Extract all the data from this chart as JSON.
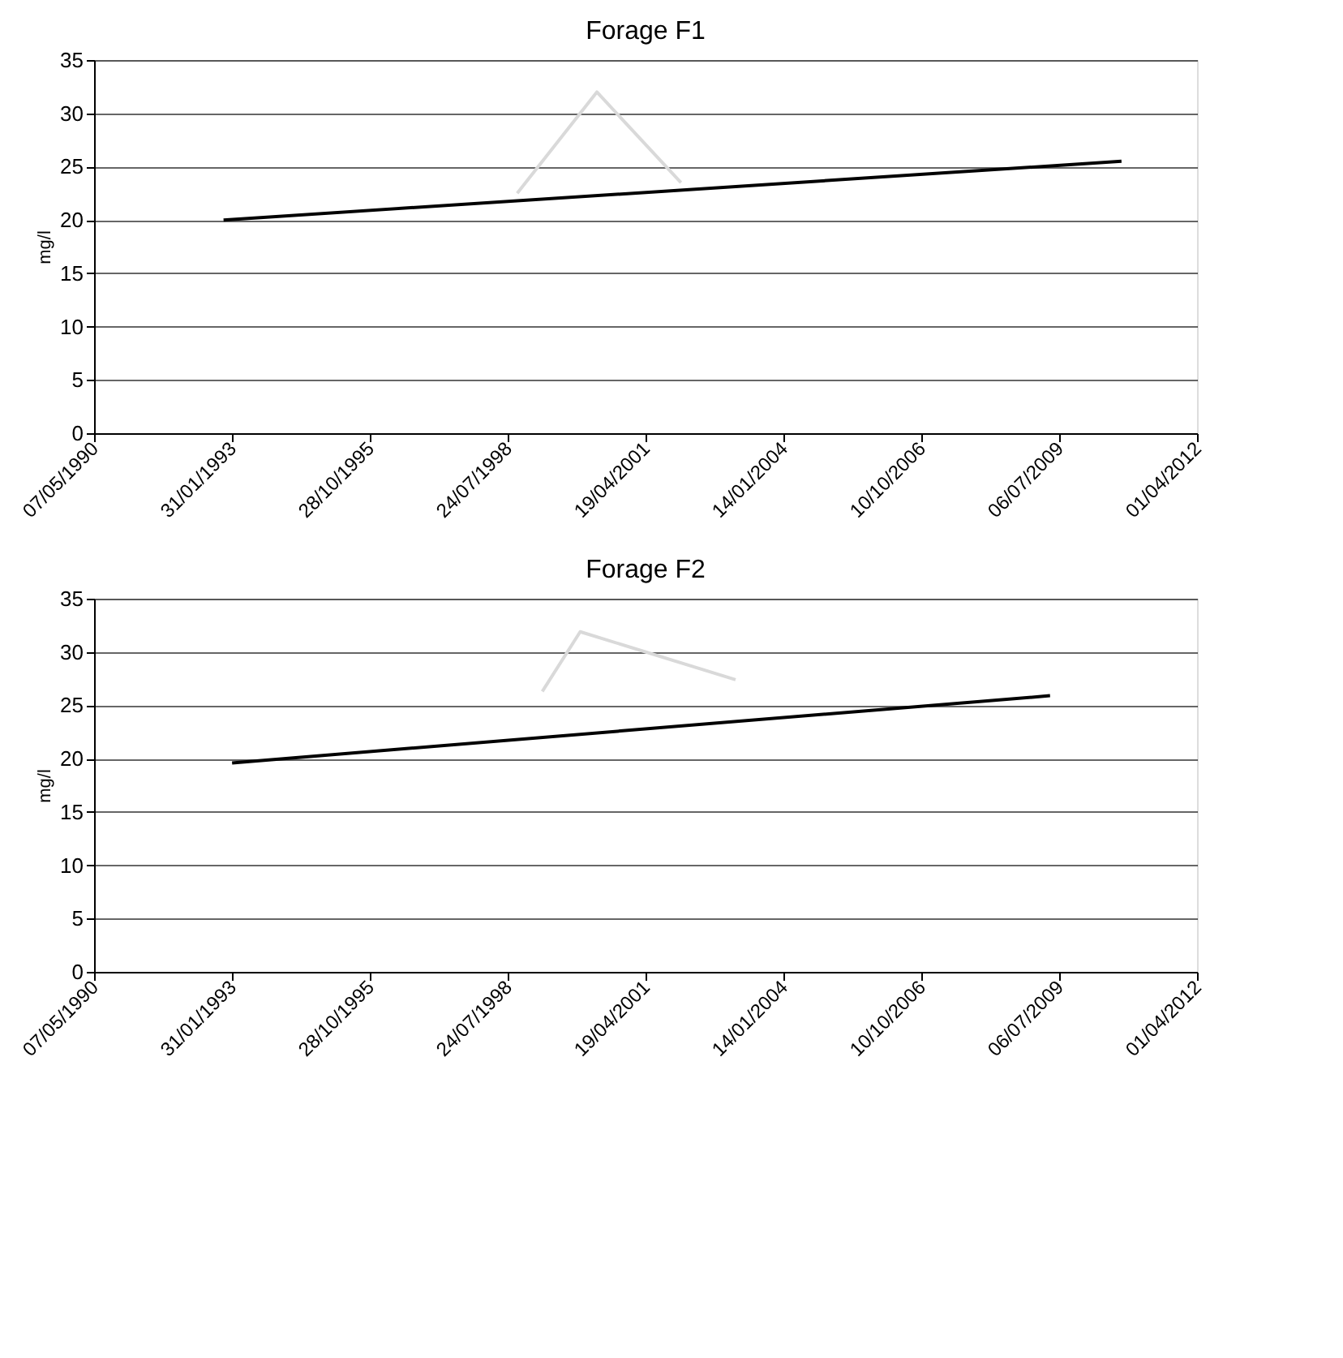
{
  "chart_data": [
    {
      "type": "line",
      "title": "Forage F1",
      "ylabel": "mg/l",
      "xlim": [
        "1990-05-07",
        "2012-04-01"
      ],
      "xticks": [
        {
          "value": "1990-05-07",
          "label": "07/05/1990"
        },
        {
          "value": "1993-01-31",
          "label": "31/01/1993"
        },
        {
          "value": "1995-10-28",
          "label": "28/10/1995"
        },
        {
          "value": "1998-07-24",
          "label": "24/07/1998"
        },
        {
          "value": "2001-04-19",
          "label": "19/04/2001"
        },
        {
          "value": "2004-01-14",
          "label": "14/01/2004"
        },
        {
          "value": "2006-10-10",
          "label": "10/10/2006"
        },
        {
          "value": "2009-07-06",
          "label": "06/07/2009"
        },
        {
          "value": "2012-04-01",
          "label": "01/04/2012"
        }
      ],
      "ylim": [
        0,
        35
      ],
      "yticks": [
        0,
        5,
        10,
        15,
        20,
        25,
        30,
        35
      ],
      "grid": "y",
      "legend": false,
      "series": [
        {
          "color": "#000000",
          "x": [
            "1992-12",
            "2010-10"
          ],
          "values": [
            20,
            25.5
          ]
        },
        {
          "color": "#d9d9d9",
          "x": [
            "1998-10",
            "2000-05",
            "2002-01"
          ],
          "values": [
            22.5,
            32,
            23.5
          ]
        }
      ]
    },
    {
      "type": "line",
      "title": "Forage F2",
      "ylabel": "mg/l",
      "xlim": [
        "1990-05-07",
        "2012-04-01"
      ],
      "xticks": [
        {
          "value": "1990-05-07",
          "label": "07/05/1990"
        },
        {
          "value": "1993-01-31",
          "label": "31/01/1993"
        },
        {
          "value": "1995-10-28",
          "label": "28/10/1995"
        },
        {
          "value": "1998-07-24",
          "label": "24/07/1998"
        },
        {
          "value": "2001-04-19",
          "label": "19/04/2001"
        },
        {
          "value": "2004-01-14",
          "label": "14/01/2004"
        },
        {
          "value": "2006-10-10",
          "label": "10/10/2006"
        },
        {
          "value": "2009-07-06",
          "label": "06/07/2009"
        },
        {
          "value": "2012-04-01",
          "label": "01/04/2012"
        }
      ],
      "ylim": [
        0,
        35
      ],
      "yticks": [
        0,
        5,
        10,
        15,
        20,
        25,
        30,
        35
      ],
      "grid": "y",
      "legend": false,
      "series": [
        {
          "color": "#000000",
          "x": [
            "1993-02",
            "2009-05"
          ],
          "values": [
            19.6,
            25.9
          ]
        },
        {
          "color": "#d9d9d9",
          "x": [
            "1999-04",
            "2000-01",
            "2003-02"
          ],
          "values": [
            26.3,
            31.9,
            27.4
          ]
        }
      ]
    }
  ]
}
